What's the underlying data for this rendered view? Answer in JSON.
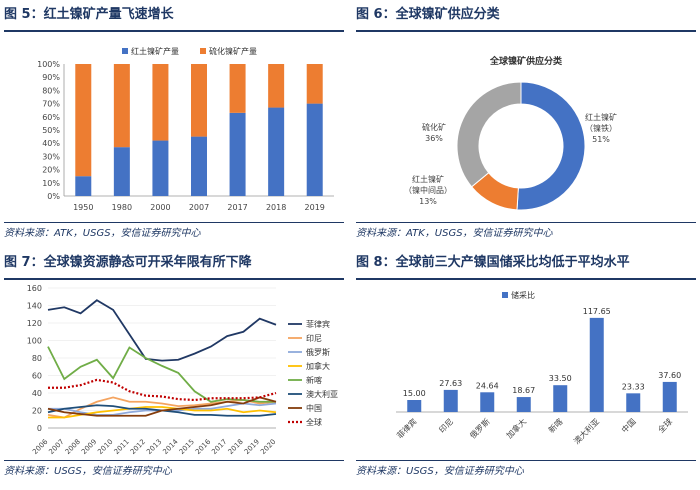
{
  "fig5": {
    "title": "图 5：红土镍矿产量飞速增长",
    "source": "资料来源：ATK，USGS，安信证券研究中心",
    "chart_data": {
      "type": "bar",
      "stacked": true,
      "categories": [
        "1950",
        "1980",
        "2000",
        "2007",
        "2017",
        "2018",
        "2019"
      ],
      "series": [
        {
          "name": "红土镍矿产量",
          "values": [
            15,
            37,
            42,
            45,
            63,
            67,
            70
          ],
          "color": "#4472c4"
        },
        {
          "name": "硫化镍矿产量",
          "values": [
            85,
            63,
            58,
            55,
            37,
            33,
            30
          ],
          "color": "#ed7d31"
        }
      ],
      "y_ticks": [
        "0%",
        "10%",
        "20%",
        "30%",
        "40%",
        "50%",
        "60%",
        "70%",
        "80%",
        "90%",
        "100%"
      ],
      "ylim": [
        0,
        100
      ],
      "legend": "top"
    }
  },
  "fig6": {
    "title": "图 6：全球镍矿供应分类",
    "source": "资料来源：ATK，USGS，安信证券研究中心",
    "chart_data": {
      "type": "pie",
      "donut": true,
      "title": "全球镍矿供应分类",
      "slices": [
        {
          "name": "红土镍矿（镍铁）",
          "value": 51,
          "label_lines": [
            "红土镍矿",
            "（镍铁）",
            "51%"
          ],
          "color": "#4472c4"
        },
        {
          "name": "红土镍矿（镍中间品）",
          "value": 13,
          "label_lines": [
            "红土镍矿",
            "（镍中间品）",
            "13%"
          ],
          "color": "#ed7d31"
        },
        {
          "name": "硫化矿",
          "value": 36,
          "label_lines": [
            "硫化矿",
            "36%"
          ],
          "color": "#a5a5a5"
        }
      ]
    }
  },
  "fig7": {
    "title": "图 7：全球镍资源静态可开采年限有所下降",
    "source": "资料来源：USGS，安信证券研究中心",
    "chart_data": {
      "type": "line",
      "x": [
        "2006",
        "2007",
        "2008",
        "2009",
        "2010",
        "2011",
        "2012",
        "2013",
        "2014",
        "2015",
        "2016",
        "2017",
        "2018",
        "2019",
        "2020"
      ],
      "ylim": [
        0,
        160
      ],
      "y_ticks": [
        "0",
        "20",
        "40",
        "60",
        "80",
        "100",
        "120",
        "140",
        "160"
      ],
      "legend": "right",
      "series": [
        {
          "name": "菲律宾",
          "color": "#203864",
          "values": [
            135,
            138,
            131,
            146,
            135,
            107,
            79,
            77,
            78,
            85,
            93,
            105,
            110,
            125,
            118
          ]
        },
        {
          "name": "印尼",
          "color": "#f4a460",
          "values": [
            15,
            12,
            22,
            30,
            35,
            30,
            30,
            28,
            25,
            26,
            28,
            30,
            32,
            28,
            30
          ]
        },
        {
          "name": "俄罗斯",
          "color": "#8ea9db",
          "values": [
            22,
            22,
            18,
            15,
            15,
            18,
            20,
            20,
            20,
            22,
            22,
            25,
            28,
            26,
            28
          ]
        },
        {
          "name": "加拿大",
          "color": "#ffc000",
          "values": [
            12,
            12,
            15,
            18,
            20,
            22,
            24,
            24,
            22,
            20,
            20,
            22,
            18,
            20,
            18
          ]
        },
        {
          "name": "新喀",
          "color": "#70ad47",
          "values": [
            93,
            56,
            70,
            78,
            57,
            92,
            80,
            71,
            63,
            42,
            30,
            33,
            32,
            30,
            30
          ]
        },
        {
          "name": "澳大利亚",
          "color": "#1f4e79",
          "values": [
            18,
            22,
            24,
            26,
            25,
            22,
            22,
            20,
            18,
            15,
            15,
            14,
            14,
            14,
            16
          ]
        },
        {
          "name": "中国",
          "color": "#843c0c",
          "values": [
            22,
            18,
            16,
            14,
            14,
            14,
            14,
            20,
            22,
            24,
            26,
            30,
            28,
            35,
            30
          ]
        },
        {
          "name": "全球",
          "color": "#c00000",
          "dashed": true,
          "values": [
            46,
            46,
            49,
            55,
            52,
            42,
            37,
            36,
            33,
            32,
            34,
            34,
            34,
            35,
            40
          ]
        }
      ]
    }
  },
  "fig8": {
    "title": "图 8：全球前三大产镍国储采比均低于平均水平",
    "source": "资料来源：USGS，安信证券研究中心",
    "chart_data": {
      "type": "bar",
      "categories": [
        "菲律宾",
        "印尼",
        "俄罗斯",
        "加拿大",
        "新喀",
        "澳大利亚",
        "中国",
        "全球"
      ],
      "series": [
        {
          "name": "储采比",
          "color": "#4472c4",
          "values": [
            15.0,
            27.63,
            24.64,
            18.67,
            33.5,
            117.65,
            23.33,
            37.6
          ]
        }
      ],
      "value_labels": [
        "15.00",
        "27.63",
        "24.64",
        "18.67",
        "33.50",
        "117.65",
        "23.33",
        "37.60"
      ],
      "ylim": [
        0,
        140
      ],
      "legend": "top"
    }
  }
}
